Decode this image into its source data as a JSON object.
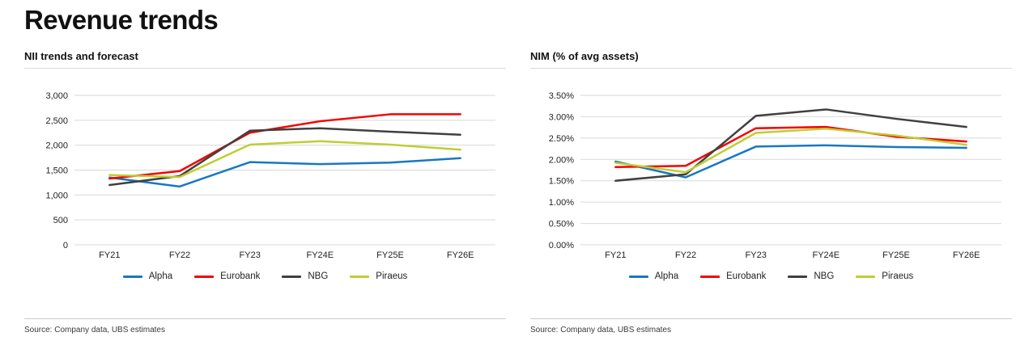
{
  "page": {
    "title": "Revenue trends"
  },
  "colors": {
    "alpha": "#1778C2",
    "eurobank": "#F50000",
    "nbg": "#404040",
    "piraeus": "#BFCE33",
    "gridline": "#D9D9D9",
    "rule": "#CCCCCC"
  },
  "chart_data": [
    {
      "type": "line",
      "title": "NII trends and forecast",
      "categories": [
        "FY21",
        "FY22",
        "FY23",
        "FY24E",
        "FY25E",
        "FY26E"
      ],
      "series": [
        {
          "name": "Alpha",
          "color": "#1778C2",
          "values": [
            1350,
            1170,
            1660,
            1620,
            1650,
            1740
          ]
        },
        {
          "name": "Eurobank",
          "color": "#F50000",
          "values": [
            1330,
            1480,
            2250,
            2480,
            2620,
            2620
          ]
        },
        {
          "name": "NBG",
          "color": "#404040",
          "values": [
            1200,
            1380,
            2290,
            2340,
            2270,
            2210
          ]
        },
        {
          "name": "Piraeus",
          "color": "#BFCE33",
          "values": [
            1400,
            1360,
            2010,
            2080,
            2010,
            1910
          ]
        }
      ],
      "ylim": [
        0,
        3000
      ],
      "y_ticks": [
        {
          "label": "3,000",
          "value": 3000
        },
        {
          "label": "2,500",
          "value": 2500
        },
        {
          "label": "2,000",
          "value": 2000
        },
        {
          "label": "1,500",
          "value": 1500
        },
        {
          "label": "1,000",
          "value": 1000
        },
        {
          "label": "500",
          "value": 500
        },
        {
          "label": "0",
          "value": 0
        }
      ],
      "grid": "horizontal",
      "legend_position": "bottom",
      "source": "Source: Company data, UBS estimates"
    },
    {
      "type": "line",
      "title": "NIM (% of avg assets)",
      "categories": [
        "FY21",
        "FY22",
        "FY23",
        "FY24E",
        "FY25E",
        "FY26E"
      ],
      "series": [
        {
          "name": "Alpha",
          "color": "#1778C2",
          "values": [
            1.95,
            1.58,
            2.3,
            2.33,
            2.29,
            2.27
          ]
        },
        {
          "name": "Eurobank",
          "color": "#F50000",
          "values": [
            1.82,
            1.85,
            2.73,
            2.76,
            2.53,
            2.42
          ]
        },
        {
          "name": "NBG",
          "color": "#404040",
          "values": [
            1.5,
            1.65,
            3.02,
            3.17,
            2.95,
            2.76
          ]
        },
        {
          "name": "Piraeus",
          "color": "#BFCE33",
          "values": [
            1.92,
            1.7,
            2.62,
            2.72,
            2.56,
            2.34
          ]
        }
      ],
      "ylim": [
        0,
        3.5
      ],
      "y_ticks": [
        {
          "label": "3.50%",
          "value": 3.5
        },
        {
          "label": "3.00%",
          "value": 3.0
        },
        {
          "label": "2.50%",
          "value": 2.5
        },
        {
          "label": "2.00%",
          "value": 2.0
        },
        {
          "label": "1.50%",
          "value": 1.5
        },
        {
          "label": "1.00%",
          "value": 1.0
        },
        {
          "label": "0.50%",
          "value": 0.5
        },
        {
          "label": "0.00%",
          "value": 0.0
        }
      ],
      "grid": "horizontal",
      "legend_position": "bottom",
      "source": "Source: Company data, UBS estimates"
    }
  ]
}
